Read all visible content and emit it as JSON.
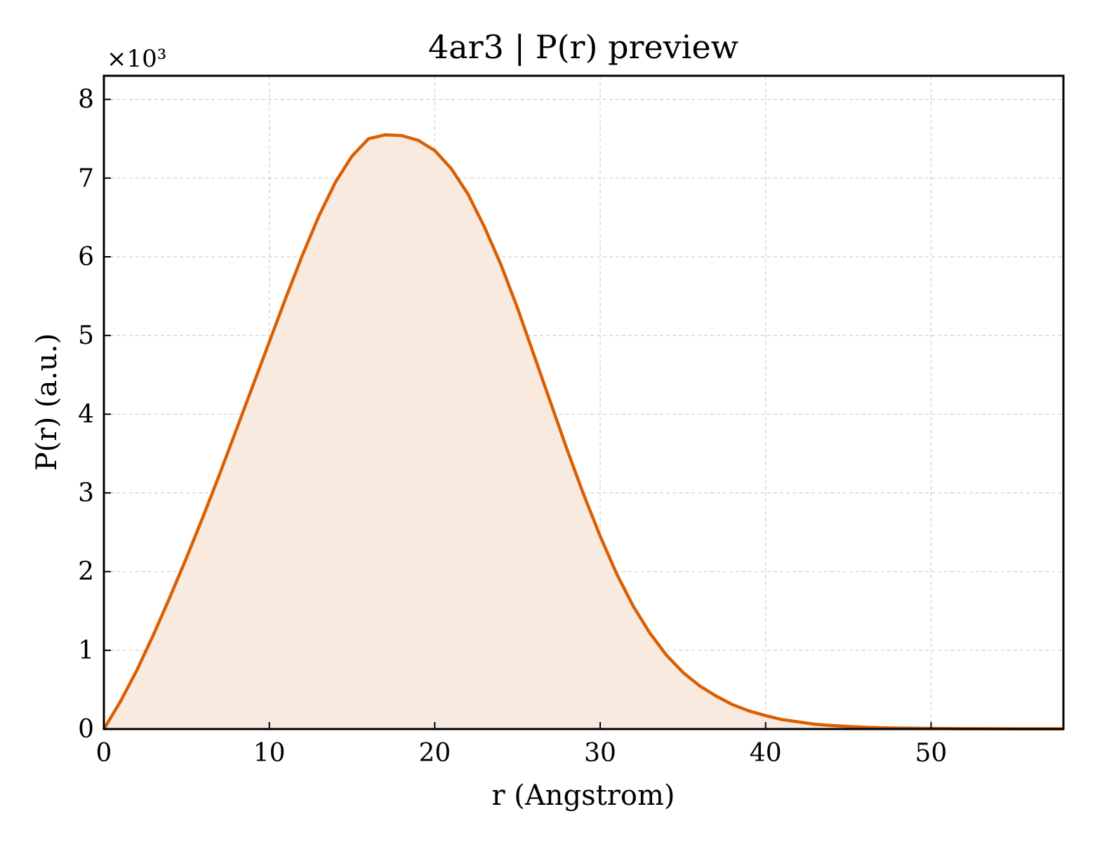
{
  "chart_data": {
    "type": "area",
    "title": "4ar3 | P(r) preview",
    "xlabel": "r (Angstrom)",
    "ylabel": "P(r) (a.u.)",
    "y_scale_label": "×10³",
    "xlim": [
      0,
      58
    ],
    "ylim": [
      0,
      8.3
    ],
    "x_ticks": [
      0,
      10,
      20,
      30,
      40,
      50
    ],
    "y_ticks": [
      0,
      1,
      2,
      3,
      4,
      5,
      6,
      7,
      8
    ],
    "grid": true,
    "line_color": "#d95f02",
    "fill_color": "#f9eae0",
    "series": [
      {
        "x": [
          0,
          1,
          2,
          3,
          4,
          5,
          6,
          7,
          8,
          9,
          10,
          11,
          12,
          13,
          14,
          15,
          16,
          17,
          18,
          19,
          20,
          21,
          22,
          23,
          24,
          25,
          26,
          27,
          28,
          29,
          30,
          31,
          32,
          33,
          34,
          35,
          36,
          37,
          38,
          39,
          40,
          41,
          42,
          43,
          44,
          45,
          46,
          47,
          48,
          50,
          52,
          54,
          56,
          58
        ],
        "y": [
          0,
          0.35,
          0.75,
          1.2,
          1.68,
          2.18,
          2.7,
          3.24,
          3.8,
          4.36,
          4.92,
          5.48,
          6.02,
          6.52,
          6.95,
          7.28,
          7.5,
          7.55,
          7.54,
          7.48,
          7.35,
          7.12,
          6.8,
          6.38,
          5.9,
          5.35,
          4.75,
          4.15,
          3.55,
          2.98,
          2.45,
          1.97,
          1.56,
          1.22,
          0.94,
          0.72,
          0.55,
          0.42,
          0.31,
          0.23,
          0.17,
          0.12,
          0.09,
          0.06,
          0.045,
          0.032,
          0.022,
          0.016,
          0.012,
          0.008,
          0.005,
          0.003,
          0.002,
          0.002
        ]
      }
    ]
  }
}
